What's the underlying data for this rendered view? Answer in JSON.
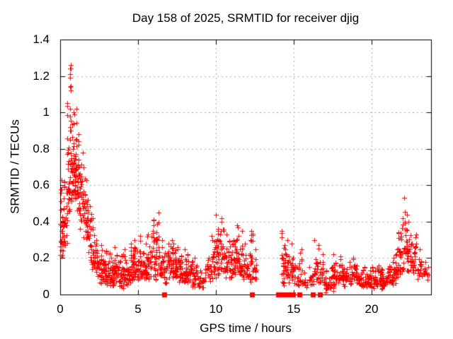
{
  "chart_data": {
    "type": "scatter",
    "title": "Day 158 of 2025, SRMTID for receiver djig",
    "xlabel": "GPS time / hours",
    "ylabel": "SRMTID / TECUs",
    "xlim": [
      0,
      23.82
    ],
    "ylim": [
      0,
      1.4
    ],
    "xticks": [
      [
        0,
        "0"
      ],
      [
        5,
        "5"
      ],
      [
        10,
        "10"
      ],
      [
        15,
        "15"
      ],
      [
        20,
        "20"
      ]
    ],
    "yticks": [
      [
        0,
        "0"
      ],
      [
        0.2,
        "0.2"
      ],
      [
        0.4,
        "0.4"
      ],
      [
        0.6,
        "0.6"
      ],
      [
        0.8,
        "0.8"
      ],
      [
        1,
        "1"
      ],
      [
        1.2,
        "1.2"
      ],
      [
        1.4,
        "1.4"
      ]
    ],
    "grid": true,
    "legend": "none",
    "colors": {
      "marker": "#ff0000",
      "grid": "#a8a8a8",
      "axis": "#000000",
      "background": "#ffffff",
      "text": "#000000"
    },
    "data_gap_hours": [
      12.6,
      14.2
    ],
    "series": [
      {
        "name": "srmtid",
        "marker": "plus",
        "color": "#ff0000",
        "bins_format": "[gps_hour_start, gps_hour_end, n_points, y_min_tecu, y_max_tecu]",
        "bins": [
          [
            0.0,
            0.25,
            40,
            0.2,
            0.63
          ],
          [
            0.25,
            0.45,
            20,
            0.27,
            0.62
          ],
          [
            0.45,
            0.6,
            26,
            0.4,
            1.05
          ],
          [
            0.6,
            0.75,
            30,
            0.5,
            1.26
          ],
          [
            0.75,
            0.9,
            30,
            0.55,
            1.0
          ],
          [
            0.9,
            1.05,
            28,
            0.5,
            1.02
          ],
          [
            1.05,
            1.25,
            28,
            0.45,
            0.88
          ],
          [
            1.25,
            1.5,
            30,
            0.35,
            0.78
          ],
          [
            1.5,
            1.75,
            30,
            0.28,
            0.7
          ],
          [
            1.75,
            2.0,
            26,
            0.18,
            0.52
          ],
          [
            2.0,
            2.25,
            24,
            0.12,
            0.42
          ],
          [
            2.25,
            2.55,
            26,
            0.08,
            0.3
          ],
          [
            2.55,
            2.85,
            28,
            0.06,
            0.27
          ],
          [
            2.85,
            3.15,
            28,
            0.05,
            0.24
          ],
          [
            3.15,
            3.45,
            28,
            0.04,
            0.23
          ],
          [
            3.45,
            3.75,
            28,
            0.05,
            0.26
          ],
          [
            3.75,
            4.05,
            26,
            0.03,
            0.22
          ],
          [
            4.05,
            4.35,
            26,
            0.05,
            0.25
          ],
          [
            4.35,
            4.65,
            26,
            0.06,
            0.28
          ],
          [
            4.65,
            4.95,
            28,
            0.08,
            0.3
          ],
          [
            4.95,
            5.25,
            28,
            0.08,
            0.32
          ],
          [
            5.25,
            5.55,
            26,
            0.06,
            0.28
          ],
          [
            5.55,
            5.85,
            26,
            0.08,
            0.33
          ],
          [
            5.85,
            6.15,
            28,
            0.08,
            0.41
          ],
          [
            6.15,
            6.35,
            18,
            0.1,
            0.45
          ],
          [
            6.35,
            6.65,
            24,
            0.08,
            0.3
          ],
          [
            6.65,
            6.95,
            24,
            0.06,
            0.28
          ],
          [
            6.95,
            7.25,
            26,
            0.08,
            0.3
          ],
          [
            7.25,
            7.55,
            26,
            0.08,
            0.28
          ],
          [
            7.55,
            7.85,
            26,
            0.06,
            0.26
          ],
          [
            7.85,
            8.15,
            26,
            0.05,
            0.25
          ],
          [
            8.15,
            8.45,
            24,
            0.05,
            0.22
          ],
          [
            8.45,
            8.75,
            22,
            0.04,
            0.2
          ],
          [
            8.75,
            9.05,
            18,
            0.04,
            0.16
          ],
          [
            9.05,
            9.4,
            14,
            0.03,
            0.14
          ],
          [
            9.4,
            9.7,
            18,
            0.05,
            0.2
          ],
          [
            9.7,
            10.0,
            24,
            0.08,
            0.32
          ],
          [
            10.0,
            10.3,
            26,
            0.1,
            0.44
          ],
          [
            10.3,
            10.6,
            26,
            0.1,
            0.42
          ],
          [
            10.6,
            10.9,
            24,
            0.08,
            0.33
          ],
          [
            10.9,
            11.2,
            24,
            0.08,
            0.3
          ],
          [
            11.2,
            11.5,
            26,
            0.1,
            0.38
          ],
          [
            11.5,
            11.8,
            24,
            0.08,
            0.35
          ],
          [
            11.8,
            12.1,
            22,
            0.08,
            0.28
          ],
          [
            12.1,
            12.4,
            24,
            0.07,
            0.35
          ],
          [
            12.4,
            12.6,
            12,
            0.06,
            0.25
          ],
          [
            14.2,
            14.45,
            26,
            0.05,
            0.35
          ],
          [
            14.45,
            14.7,
            22,
            0.06,
            0.3
          ],
          [
            14.7,
            15.05,
            20,
            0.07,
            0.28
          ],
          [
            15.05,
            15.3,
            10,
            0.04,
            0.16
          ],
          [
            15.3,
            15.6,
            16,
            0.05,
            0.25
          ],
          [
            15.6,
            15.95,
            10,
            0.03,
            0.12
          ],
          [
            15.95,
            16.3,
            12,
            0.05,
            0.15
          ],
          [
            16.3,
            16.6,
            20,
            0.08,
            0.3
          ],
          [
            16.6,
            16.95,
            18,
            0.05,
            0.22
          ],
          [
            16.95,
            17.25,
            20,
            0.01,
            0.13
          ],
          [
            17.25,
            17.55,
            22,
            0.02,
            0.15
          ],
          [
            17.55,
            17.85,
            24,
            0.05,
            0.22
          ],
          [
            17.85,
            18.2,
            26,
            0.05,
            0.21
          ],
          [
            18.2,
            18.6,
            26,
            0.04,
            0.18
          ],
          [
            18.6,
            19.0,
            26,
            0.05,
            0.2
          ],
          [
            19.0,
            19.4,
            26,
            0.04,
            0.16
          ],
          [
            19.4,
            19.8,
            26,
            0.04,
            0.15
          ],
          [
            19.8,
            20.2,
            28,
            0.03,
            0.15
          ],
          [
            20.2,
            20.6,
            28,
            0.04,
            0.16
          ],
          [
            20.6,
            21.0,
            26,
            0.03,
            0.14
          ],
          [
            21.0,
            21.4,
            26,
            0.05,
            0.18
          ],
          [
            21.4,
            21.7,
            24,
            0.06,
            0.25
          ],
          [
            21.7,
            22.0,
            26,
            0.1,
            0.42
          ],
          [
            22.0,
            22.3,
            26,
            0.12,
            0.53
          ],
          [
            22.3,
            22.6,
            24,
            0.1,
            0.4
          ],
          [
            22.6,
            22.9,
            22,
            0.1,
            0.33
          ],
          [
            22.9,
            23.2,
            18,
            0.08,
            0.25
          ],
          [
            23.2,
            23.5,
            10,
            0.08,
            0.18
          ],
          [
            23.5,
            23.8,
            6,
            0.08,
            0.15
          ]
        ]
      },
      {
        "name": "zero-line-markers",
        "marker": "filled-square",
        "color": "#ff0000",
        "y": 0,
        "x": [
          6.69,
          12.3,
          14.02,
          14.22,
          14.42,
          14.6,
          14.71,
          14.95,
          15.38,
          16.22,
          16.7
        ]
      }
    ]
  }
}
